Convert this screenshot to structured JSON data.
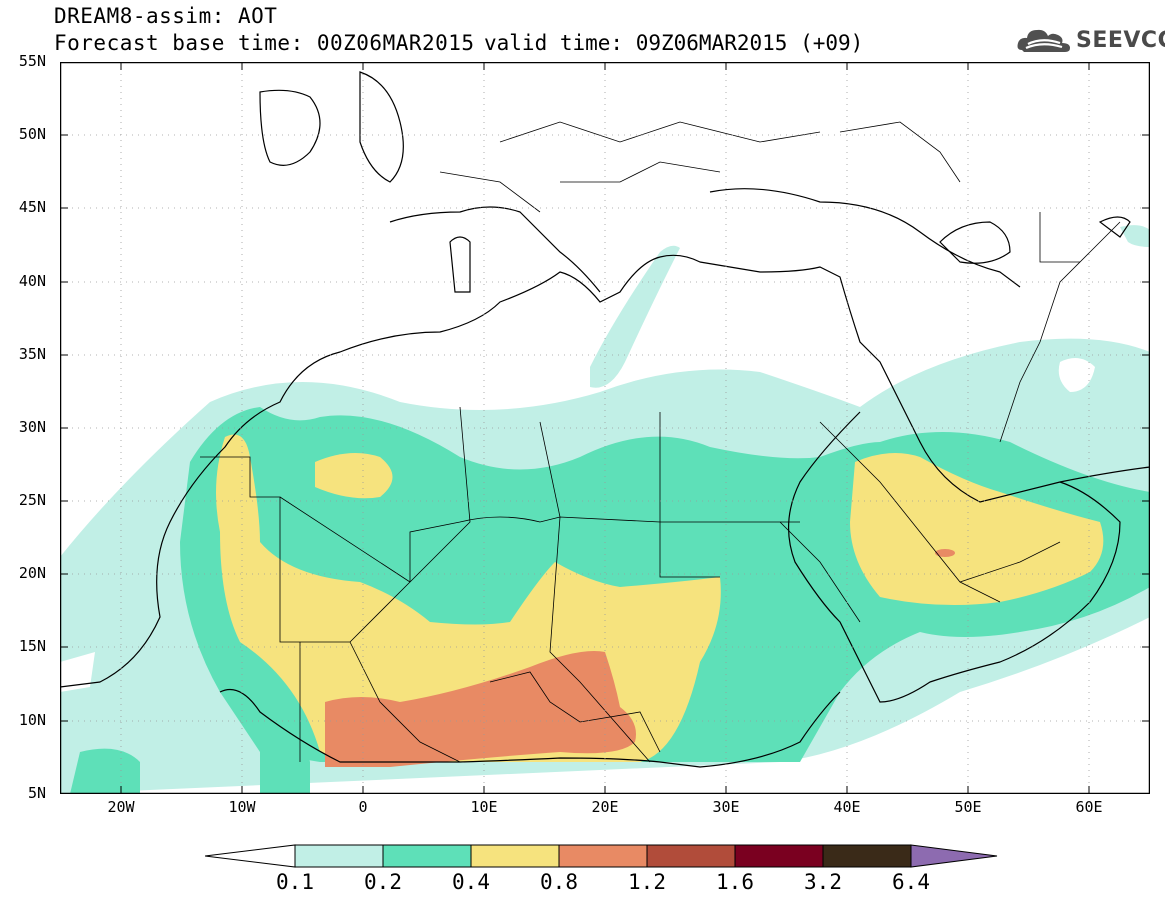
{
  "header": {
    "title": "DREAM8-assim: AOT",
    "base_time": "Forecast base time: 00Z06MAR2015",
    "valid_time": "valid time: 09Z06MAR2015 (+09)"
  },
  "logo": {
    "text": "SEEVCCC",
    "icon": "cloud-logo-icon"
  },
  "map": {
    "variable": "AOT",
    "lon_range": [
      -25,
      65
    ],
    "lat_range": [
      5,
      55
    ],
    "lat_ticks": [
      "55N",
      "50N",
      "45N",
      "40N",
      "35N",
      "30N",
      "25N",
      "20N",
      "15N",
      "10N",
      "5N"
    ],
    "lon_ticks": [
      "20W",
      "10W",
      "0",
      "10E",
      "20E",
      "30E",
      "40E",
      "50E",
      "60E"
    ],
    "grid": "dotted"
  },
  "colorbar": {
    "labels": [
      "0.1",
      "0.2",
      "0.4",
      "0.8",
      "1.2",
      "1.6",
      "3.2",
      "6.4"
    ],
    "colors": [
      "#ffffff",
      "#c1efe6",
      "#5ee0b8",
      "#f6e37e",
      "#e88a64",
      "#b14c3a",
      "#7a0020",
      "#3a2a18",
      "#8d6bb0"
    ]
  }
}
